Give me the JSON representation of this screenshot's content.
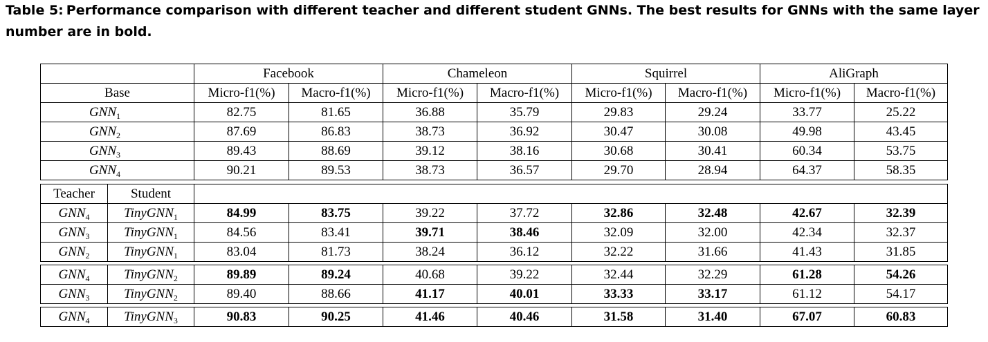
{
  "caption": {
    "label": "Table 5:",
    "text": "Performance comparison with different teacher and different student GNNs. The best results for GNNs with the same layer number are in bold."
  },
  "header": {
    "datasets": [
      "Facebook",
      "Chameleon",
      "Squirrel",
      "AliGraph"
    ],
    "base_label": "Base",
    "metrics": [
      "Micro-f1(%)",
      "Macro-f1(%)",
      "Micro-f1(%)",
      "Macro-f1(%)",
      "Micro-f1(%)",
      "Macro-f1(%)",
      "Micro-f1(%)",
      "Macro-f1(%)"
    ],
    "teacher_label": "Teacher",
    "student_label": "Student"
  },
  "base_rows": [
    {
      "model": "GNN",
      "sub": "1",
      "values": [
        "82.75",
        "81.65",
        "36.88",
        "35.79",
        "29.83",
        "29.24",
        "33.77",
        "25.22"
      ]
    },
    {
      "model": "GNN",
      "sub": "2",
      "values": [
        "87.69",
        "86.83",
        "38.73",
        "36.92",
        "30.47",
        "30.08",
        "49.98",
        "43.45"
      ]
    },
    {
      "model": "GNN",
      "sub": "3",
      "values": [
        "89.43",
        "88.69",
        "39.12",
        "38.16",
        "30.68",
        "30.41",
        "60.34",
        "53.75"
      ]
    },
    {
      "model": "GNN",
      "sub": "4",
      "values": [
        "90.21",
        "89.53",
        "38.73",
        "36.57",
        "29.70",
        "28.94",
        "64.37",
        "58.35"
      ]
    }
  ],
  "distill_rows": [
    {
      "teacher": "GNN",
      "teacher_sub": "4",
      "student": "TinyGNN",
      "student_sub": "1",
      "values": [
        "84.99",
        "83.75",
        "39.22",
        "37.72",
        "32.86",
        "32.48",
        "42.67",
        "32.39"
      ],
      "bold": [
        true,
        true,
        false,
        false,
        true,
        true,
        true,
        true
      ]
    },
    {
      "teacher": "GNN",
      "teacher_sub": "3",
      "student": "TinyGNN",
      "student_sub": "1",
      "values": [
        "84.56",
        "83.41",
        "39.71",
        "38.46",
        "32.09",
        "32.00",
        "42.34",
        "32.37"
      ],
      "bold": [
        false,
        false,
        true,
        true,
        false,
        false,
        false,
        false
      ]
    },
    {
      "teacher": "GNN",
      "teacher_sub": "2",
      "student": "TinyGNN",
      "student_sub": "1",
      "values": [
        "83.04",
        "81.73",
        "38.24",
        "36.12",
        "32.22",
        "31.66",
        "41.43",
        "31.85"
      ],
      "bold": [
        false,
        false,
        false,
        false,
        false,
        false,
        false,
        false
      ]
    },
    {
      "teacher": "GNN",
      "teacher_sub": "4",
      "student": "TinyGNN",
      "student_sub": "2",
      "values": [
        "89.89",
        "89.24",
        "40.68",
        "39.22",
        "32.44",
        "32.29",
        "61.28",
        "54.26"
      ],
      "bold": [
        true,
        true,
        false,
        false,
        false,
        false,
        true,
        true
      ]
    },
    {
      "teacher": "GNN",
      "teacher_sub": "3",
      "student": "TinyGNN",
      "student_sub": "2",
      "values": [
        "89.40",
        "88.66",
        "41.17",
        "40.01",
        "33.33",
        "33.17",
        "61.12",
        "54.17"
      ],
      "bold": [
        false,
        false,
        true,
        true,
        true,
        true,
        false,
        false
      ]
    },
    {
      "teacher": "GNN",
      "teacher_sub": "4",
      "student": "TinyGNN",
      "student_sub": "3",
      "values": [
        "90.83",
        "90.25",
        "41.46",
        "40.46",
        "31.58",
        "31.40",
        "67.07",
        "60.83"
      ],
      "bold": [
        true,
        true,
        true,
        true,
        true,
        true,
        true,
        true
      ]
    }
  ]
}
